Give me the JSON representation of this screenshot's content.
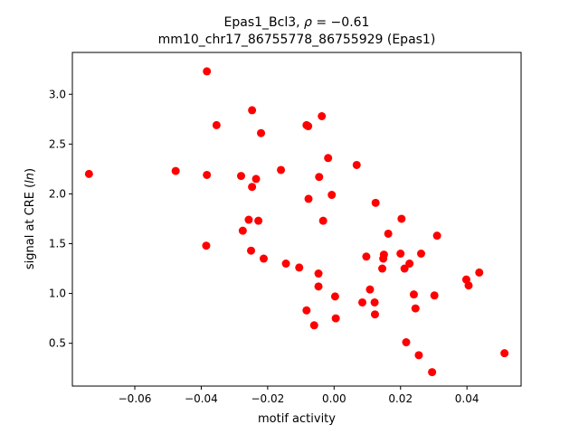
{
  "chart_data": {
    "type": "scatter",
    "title_line1_text": "Epas1_Bcl3, ",
    "title_line1_rho": "ρ",
    "title_line1_value": " = −0.61",
    "title_line2": "mm10_chr17_86755778_86755929 (Epas1)",
    "xlabel": "motif activity",
    "ylabel_prefix": "signal at CRE (",
    "ylabel_ln": "ln",
    "ylabel_suffix": ")",
    "xlim": [
      -0.0788,
      0.0563
    ],
    "ylim": [
      0.07,
      3.42
    ],
    "xticks": [
      -0.06,
      -0.04,
      -0.02,
      0.0,
      0.02,
      0.04
    ],
    "xtick_labels": [
      "−0.06",
      "−0.04",
      "−0.02",
      "0.00",
      "0.02",
      "0.04"
    ],
    "yticks": [
      0.5,
      1.0,
      1.5,
      2.0,
      2.5,
      3.0
    ],
    "ytick_labels": [
      "0.5",
      "1.0",
      "1.5",
      "2.0",
      "2.5",
      "3.0"
    ],
    "marker_color": "#ff0000",
    "grid": false,
    "series": [
      {
        "points": [
          {
            "x": -0.0738,
            "y": 2.2
          },
          {
            "x": -0.0477,
            "y": 2.23
          },
          {
            "x": -0.0383,
            "y": 3.23
          },
          {
            "x": -0.0383,
            "y": 2.19
          },
          {
            "x": -0.0385,
            "y": 1.48
          },
          {
            "x": -0.0354,
            "y": 2.69
          },
          {
            "x": -0.028,
            "y": 2.18
          },
          {
            "x": -0.0275,
            "y": 1.63
          },
          {
            "x": -0.0257,
            "y": 1.74
          },
          {
            "x": -0.0247,
            "y": 2.07
          },
          {
            "x": -0.0247,
            "y": 2.84
          },
          {
            "x": -0.025,
            "y": 1.43
          },
          {
            "x": -0.0235,
            "y": 2.15
          },
          {
            "x": -0.0228,
            "y": 1.73
          },
          {
            "x": -0.022,
            "y": 2.61
          },
          {
            "x": -0.0212,
            "y": 1.35
          },
          {
            "x": -0.016,
            "y": 2.24
          },
          {
            "x": -0.0145,
            "y": 1.3
          },
          {
            "x": -0.0105,
            "y": 1.26
          },
          {
            "x": -0.0083,
            "y": 2.69
          },
          {
            "x": -0.0078,
            "y": 2.68
          },
          {
            "x": -0.0077,
            "y": 1.95
          },
          {
            "x": -0.0083,
            "y": 0.83
          },
          {
            "x": -0.006,
            "y": 0.68
          },
          {
            "x": -0.0047,
            "y": 1.2
          },
          {
            "x": -0.0047,
            "y": 1.07
          },
          {
            "x": -0.0045,
            "y": 2.17
          },
          {
            "x": -0.0037,
            "y": 2.78
          },
          {
            "x": -0.0033,
            "y": 1.73
          },
          {
            "x": -0.0018,
            "y": 2.36
          },
          {
            "x": -0.0007,
            "y": 1.99
          },
          {
            "x": 0.0003,
            "y": 0.97
          },
          {
            "x": 0.0005,
            "y": 0.75
          },
          {
            "x": 0.0068,
            "y": 2.29
          },
          {
            "x": 0.0085,
            "y": 0.91
          },
          {
            "x": 0.0097,
            "y": 1.37
          },
          {
            "x": 0.0108,
            "y": 1.04
          },
          {
            "x": 0.0122,
            "y": 0.91
          },
          {
            "x": 0.0123,
            "y": 0.79
          },
          {
            "x": 0.0125,
            "y": 1.91
          },
          {
            "x": 0.0145,
            "y": 1.25
          },
          {
            "x": 0.0148,
            "y": 1.35
          },
          {
            "x": 0.015,
            "y": 1.39
          },
          {
            "x": 0.0163,
            "y": 1.6
          },
          {
            "x": 0.02,
            "y": 1.4
          },
          {
            "x": 0.0203,
            "y": 1.75
          },
          {
            "x": 0.0212,
            "y": 1.25
          },
          {
            "x": 0.0217,
            "y": 0.51
          },
          {
            "x": 0.0227,
            "y": 1.3
          },
          {
            "x": 0.024,
            "y": 0.99
          },
          {
            "x": 0.0245,
            "y": 0.85
          },
          {
            "x": 0.0255,
            "y": 0.38
          },
          {
            "x": 0.0262,
            "y": 1.4
          },
          {
            "x": 0.0295,
            "y": 0.21
          },
          {
            "x": 0.0302,
            "y": 0.98
          },
          {
            "x": 0.031,
            "y": 1.58
          },
          {
            "x": 0.0398,
            "y": 1.14
          },
          {
            "x": 0.0405,
            "y": 1.08
          },
          {
            "x": 0.0437,
            "y": 1.21
          },
          {
            "x": 0.0513,
            "y": 0.4
          }
        ]
      }
    ]
  }
}
